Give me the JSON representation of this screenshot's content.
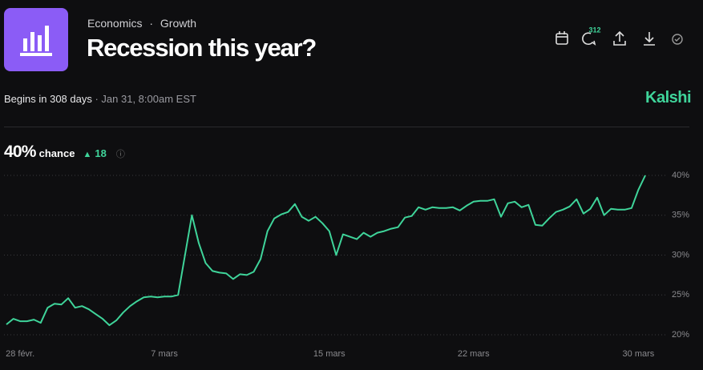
{
  "header": {
    "category": "Economics",
    "separator": "·",
    "subcategory": "Growth",
    "title": "Recession this year?",
    "comments": "312",
    "begins": "Begins in 308 days",
    "date": "· Jan 31, 8:00am EST",
    "brand": "Kalshi",
    "chance": "40%",
    "chance_label": "chance",
    "change": "18"
  },
  "chart_data": {
    "type": "line",
    "categories": [
      null,
      null,
      "28 févr.",
      null,
      null,
      null,
      null,
      null,
      null,
      null,
      null,
      null,
      null,
      null,
      null,
      null,
      null,
      null,
      null,
      null,
      null,
      null,
      null,
      "7 mars",
      null,
      null,
      null,
      null,
      null,
      null,
      null,
      null,
      null,
      null,
      null,
      null,
      null,
      null,
      null,
      null,
      null,
      null,
      null,
      null,
      null,
      null,
      null,
      "15 mars",
      null,
      null,
      null,
      null,
      null,
      null,
      null,
      null,
      null,
      null,
      null,
      null,
      null,
      null,
      null,
      null,
      null,
      null,
      null,
      null,
      "22 mars",
      null,
      null,
      null,
      null,
      null,
      null,
      null,
      null,
      null,
      null,
      null,
      null,
      null,
      null,
      null,
      null,
      null,
      null,
      null,
      null,
      null,
      null,
      null,
      "30 mars",
      null
    ],
    "series": [
      {
        "name": "Recession",
        "color": "#3fd49a",
        "values": [
          21.3,
          22.0,
          21.7,
          21.7,
          21.9,
          21.5,
          23.4,
          23.9,
          23.8,
          24.6,
          23.4,
          23.6,
          23.2,
          22.6,
          22.0,
          21.2,
          21.8,
          22.8,
          23.6,
          24.2,
          24.7,
          24.8,
          24.7,
          24.8,
          24.8,
          25.0,
          30.0,
          35.0,
          31.5,
          29.0,
          28.0,
          27.8,
          27.7,
          27.0,
          27.6,
          27.5,
          27.9,
          29.5,
          33.0,
          34.6,
          35.1,
          35.4,
          36.4,
          34.8,
          34.3,
          34.8,
          34.0,
          33.0,
          30.0,
          32.6,
          32.3,
          32.0,
          32.8,
          32.3,
          32.8,
          33.0,
          33.3,
          33.5,
          34.7,
          34.9,
          36.0,
          35.7,
          36.0,
          35.9,
          35.9,
          36.0,
          35.6,
          36.2,
          36.7,
          36.8,
          36.8,
          37.0,
          34.8,
          36.5,
          36.7,
          36.0,
          36.3,
          33.8,
          33.7,
          34.6,
          35.4,
          35.7,
          36.1,
          37.0,
          35.2,
          35.8,
          37.2,
          35.0,
          35.8,
          35.7,
          35.7,
          35.9,
          38.2,
          40.0
        ]
      }
    ],
    "ylim": [
      19,
      41
    ],
    "yticks": [
      {
        "value": 20,
        "label": "20%"
      },
      {
        "value": 25,
        "label": "25%"
      },
      {
        "value": 30,
        "label": "30%"
      },
      {
        "value": 35,
        "label": "35%"
      },
      {
        "value": 40,
        "label": "40%"
      }
    ],
    "grid": true
  }
}
